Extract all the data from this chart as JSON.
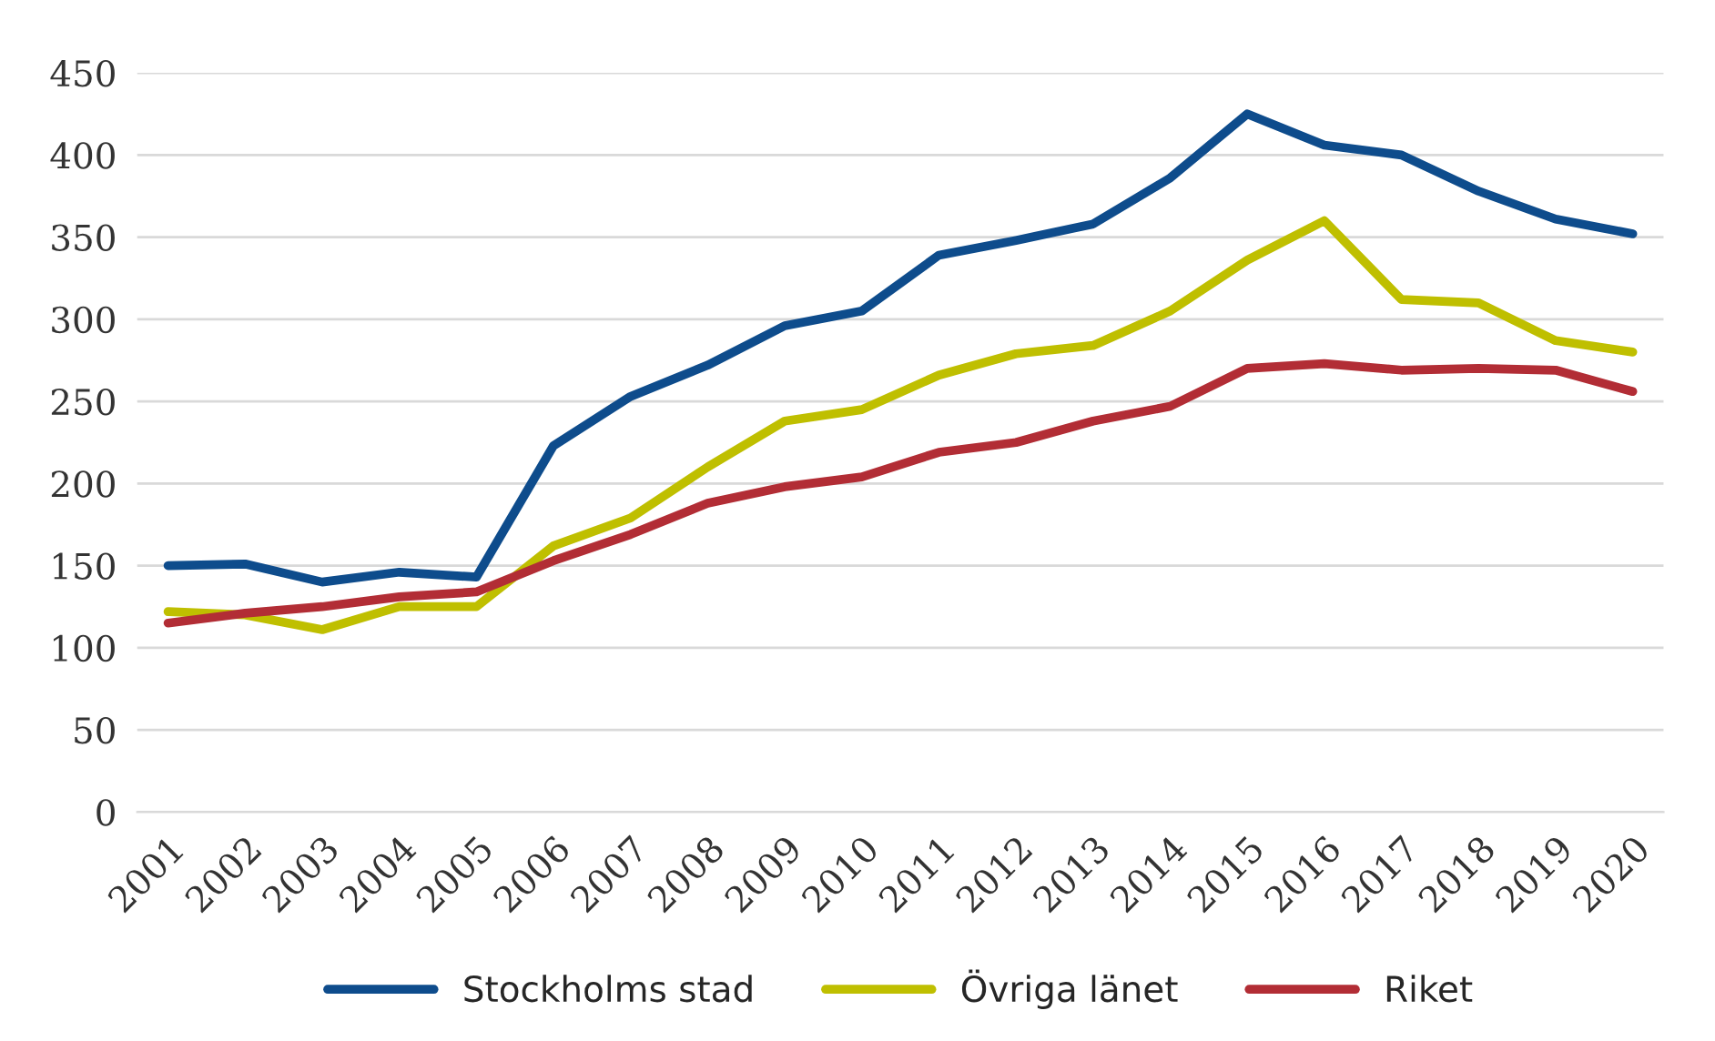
{
  "chart_data": {
    "type": "line",
    "categories": [
      "2001",
      "2002",
      "2003",
      "2004",
      "2005",
      "2006",
      "2007",
      "2008",
      "2009",
      "2010",
      "2011",
      "2012",
      "2013",
      "2014",
      "2015",
      "2016",
      "2017",
      "2018",
      "2019",
      "2020"
    ],
    "series": [
      {
        "name": "Stockholms stad",
        "color": "#0e4c8c",
        "values": [
          150,
          151,
          140,
          146,
          143,
          223,
          253,
          272,
          296,
          305,
          339,
          348,
          358,
          386,
          425,
          406,
          400,
          378,
          361,
          352
        ]
      },
      {
        "name": "Övriga länet",
        "color": "#bfbf00",
        "values": [
          122,
          120,
          111,
          125,
          125,
          162,
          179,
          210,
          238,
          245,
          266,
          279,
          284,
          305,
          336,
          360,
          312,
          310,
          287,
          280
        ]
      },
      {
        "name": "Riket",
        "color": "#b22d35",
        "values": [
          115,
          121,
          125,
          131,
          134,
          153,
          169,
          188,
          198,
          204,
          219,
          225,
          238,
          247,
          270,
          273,
          269,
          270,
          269,
          256
        ]
      }
    ],
    "ylim": [
      0,
      450
    ],
    "yticks": [
      0,
      50,
      100,
      150,
      200,
      250,
      300,
      350,
      400,
      450
    ],
    "grid": "y",
    "legend": "bottom",
    "marker": "none",
    "line_style": "solid"
  }
}
